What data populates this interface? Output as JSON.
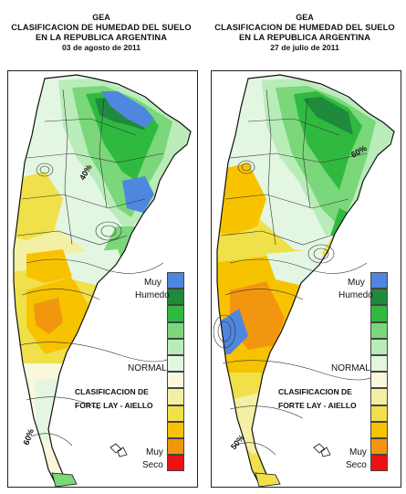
{
  "maps": [
    {
      "org": "GEA",
      "title_line1": "CLASIFICACION DE HUMEDAD DEL SUELO",
      "title_line2": "EN LA REPUBLICA ARGENTINA",
      "date": "03 de agosto de 2011",
      "contour_labels": [
        "40%",
        "60%"
      ]
    },
    {
      "org": "GEA",
      "title_line1": "CLASIFICACION DE HUMEDAD DEL SUELO",
      "title_line2": "EN LA REPUBLICA ARGENTINA",
      "date": "27 de julio de 2011",
      "contour_labels": [
        "60%",
        "50%"
      ]
    }
  ],
  "legend": {
    "wet_label_1": "Muy",
    "wet_label_2": "Humedo",
    "normal_label": "NORMAL",
    "dry_label_1": "Muy",
    "dry_label_2": "Seco",
    "classification_1": "CLASIFICACION DE",
    "classification_2": "FORTE LAY - AIELLO",
    "colors": [
      "#4f86e0",
      "#1f8a3c",
      "#2fba3f",
      "#7ad77a",
      "#b9ecb9",
      "#e2f6e2",
      "#f9f7dc",
      "#f4f0a3",
      "#f0e04a",
      "#f7c300",
      "#f3960f",
      "#ee1111"
    ]
  }
}
